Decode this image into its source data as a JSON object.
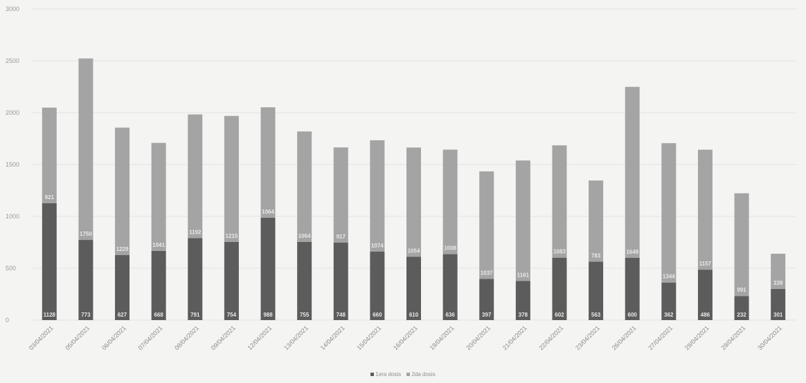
{
  "chart_data": {
    "type": "bar",
    "stacked": true,
    "title": "",
    "xlabel": "",
    "ylabel": "",
    "ylim": [
      0,
      3000
    ],
    "yticks": [
      "0",
      "500",
      "1000",
      "1500",
      "2000",
      "2500",
      "3000"
    ],
    "grid": true,
    "legend_position": "bottom",
    "categories": [
      "03/04/2021",
      "05/04/2021",
      "06/04/2021",
      "07/04/2021",
      "08/04/2021",
      "09/04/2021",
      "12/04/2021",
      "13/04/2021",
      "14/04/2021",
      "15/04/2021",
      "16/04/2021",
      "19/04/2021",
      "20/04/2021",
      "21/04/2021",
      "22/04/2021",
      "23/04/2021",
      "26/04/2021",
      "27/04/2021",
      "28/04/2021",
      "29/04/2021",
      "30/04/2021"
    ],
    "series": [
      {
        "name": "1era dosis",
        "color": "#5c5c5c",
        "values": [
          1128,
          773,
          627,
          668,
          791,
          754,
          988,
          755,
          748,
          660,
          610,
          636,
          397,
          378,
          602,
          563,
          600,
          362,
          486,
          232,
          301
        ]
      },
      {
        "name": "2da dosis",
        "color": "#a4a4a4",
        "values": [
          921,
          1750,
          1229,
          1041,
          1192,
          1215,
          1064,
          1064,
          917,
          1074,
          1054,
          1008,
          1037,
          1161,
          1083,
          783,
          1649,
          1344,
          1157,
          991,
          339
        ]
      }
    ],
    "data_labels": {
      "1era dosis": [
        "1128",
        "773",
        "627",
        "668",
        "791",
        "754",
        "988",
        "755",
        "748",
        "660",
        "610",
        "636",
        "397",
        "378",
        "602",
        "563",
        "600",
        "362",
        "486",
        "232",
        "301"
      ],
      "2da dosis": [
        "921",
        "1750",
        "1229",
        "1041",
        "1192",
        "1215",
        "1064",
        "1064",
        "917",
        "1074",
        "1054",
        "1008",
        "1037",
        "1161",
        "1083",
        "783",
        "1649",
        "1344",
        "1157",
        "991",
        "339"
      ]
    }
  }
}
